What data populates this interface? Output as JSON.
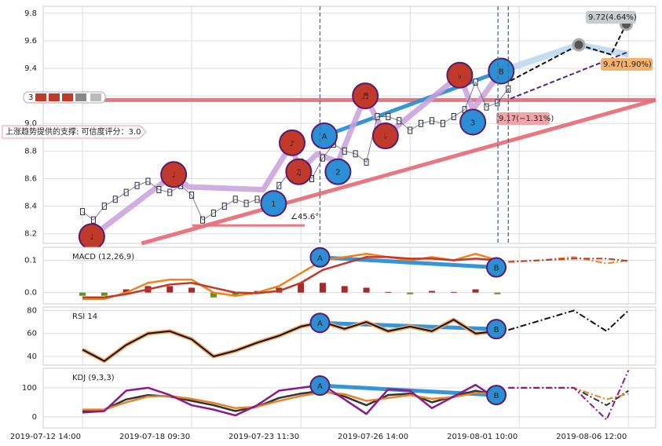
{
  "chart_data": [
    {
      "type": "line",
      "ylim": [
        8.13,
        9.85
      ],
      "yticks": [
        8.2,
        8.4,
        8.6,
        8.8,
        {
          "value": 9.0,
          "label": "9.0"
        },
        9.2,
        9.4,
        9.6,
        9.8
      ],
      "grid": true,
      "vlines": [
        43.5,
        76.1,
        78
      ],
      "series": [
        {
          "color": "#2b2d42",
          "x": [
            0,
            2,
            4,
            6,
            8,
            10,
            12,
            14,
            16,
            18,
            20,
            22,
            24,
            26,
            28,
            30,
            32,
            34,
            36,
            38,
            40,
            42,
            44,
            46,
            48,
            50,
            52,
            54,
            56,
            58,
            60,
            62,
            64,
            66,
            68,
            70,
            72,
            74,
            76,
            78
          ],
          "values": [
            8.36,
            8.3,
            8.4,
            8.45,
            8.5,
            8.55,
            8.58,
            8.52,
            8.5,
            8.55,
            8.48,
            8.3,
            8.35,
            8.4,
            8.45,
            8.42,
            8.45,
            8.42,
            8.55,
            8.65,
            8.72,
            8.6,
            8.75,
            8.85,
            8.8,
            8.78,
            8.72,
            9.05,
            9.05,
            9.02,
            8.95,
            9.0,
            9.02,
            9.0,
            9.05,
            9.1,
            9.3,
            9.12,
            9.15,
            9.25
          ]
        }
      ],
      "pattern": {
        "color": "#c9a0dc",
        "x": [
          1.7,
          16.7,
          19.4,
          33.1,
          38.4,
          39.6,
          43,
          46.8,
          51.8,
          55.5,
          69.1,
          71.5,
          76.7
        ],
        "values": [
          8.18,
          8.63,
          8.54,
          8.52,
          8.86,
          8.65,
          8.78,
          8.72,
          9.2,
          8.91,
          9.35,
          9.1,
          9.38
        ]
      },
      "trend_lines": [
        {
          "color": "#e8707a",
          "x": [
            10.8,
            105
          ],
          "values": [
            8.13,
            9.17
          ]
        },
        {
          "color": "#e8707a",
          "x": [
            -7,
            105
          ],
          "values": [
            9.17,
            9.17
          ]
        },
        {
          "color": "#2a8fd4",
          "x": [
            44.3,
            76.7
          ],
          "values": [
            8.91,
            9.38
          ]
        },
        {
          "color": "#e8707a",
          "x": [
            20.1,
            40.7
          ],
          "values": [
            8.26,
            8.26
          ]
        }
      ],
      "forecast": [
        {
          "color": "#b3d4ee",
          "x": [
            76.7,
            90.9,
            100
          ],
          "values": [
            9.38,
            9.57,
            9.5
          ]
        },
        {
          "color": "#111111",
          "x": [
            78.4,
            90.9,
            96.8,
            99.6
          ],
          "values": [
            9.31,
            9.57,
            9.5,
            9.72
          ]
        },
        {
          "color": "#4b2a8a",
          "x": [
            78.4,
            100
          ],
          "values": [
            9.18,
            9.52
          ]
        }
      ],
      "forecast_points": {
        "x": [
          90.9,
          99.6
        ],
        "values": [
          9.57,
          9.72
        ]
      },
      "markers": [
        {
          "label": "♩",
          "x": 1.7,
          "value": 8.18,
          "color": "#c0392b"
        },
        {
          "label": "♩",
          "x": 16.7,
          "value": 8.63,
          "color": "#c0392b"
        },
        {
          "label": "♪",
          "x": 38.4,
          "value": 8.86,
          "color": "#c0392b"
        },
        {
          "label": "♫",
          "x": 39.6,
          "value": 8.65,
          "color": "#c0392b"
        },
        {
          "label": "♬",
          "x": 51.8,
          "value": 9.2,
          "color": "#c0392b"
        },
        {
          "label": "♭",
          "x": 55.5,
          "value": 8.91,
          "color": "#c0392b"
        },
        {
          "label": "♭",
          "x": 69.1,
          "value": 9.35,
          "color": "#c0392b"
        },
        {
          "label": "1",
          "x": 35.0,
          "value": 8.42,
          "color": "#2a8fd4"
        },
        {
          "label": "2",
          "x": 46.8,
          "value": 8.65,
          "color": "#2a8fd4"
        },
        {
          "label": "3",
          "x": 71.5,
          "value": 9.01,
          "color": "#2a8fd4"
        },
        {
          "label": "A",
          "x": 44.3,
          "value": 8.91,
          "color": "#2a8fd4"
        },
        {
          "label": "B",
          "x": 76.7,
          "value": 9.38,
          "color": "#2a8fd4"
        }
      ],
      "callouts": [
        {
          "label": "9.72(4.64%)",
          "color": "#c8ccd0"
        },
        {
          "label": "9.47(1.90%)",
          "color": "#f5b26b"
        },
        {
          "label": "9.17(−1.31%)",
          "color": "#f2a5a8"
        }
      ],
      "support_text": "上涨趋势提供的支撑: 可信度评分：3.0",
      "angle_text": "∠45.6°",
      "badge_text": "3"
    },
    {
      "type": "macd",
      "title": "MACD (12,26,9)",
      "ylim": [
        -0.035,
        0.14
      ],
      "yticks": [
        {
          "value": 0,
          "label": "0.0"
        },
        0.1
      ],
      "grid": true,
      "x": [
        0,
        4,
        8,
        12,
        16,
        20,
        24,
        28,
        32,
        36,
        40,
        44,
        48,
        52,
        56,
        60,
        64,
        68,
        72,
        76
      ],
      "histogram": {
        "up_color": "#a52a2a",
        "down_color": "#6b8e23",
        "values": [
          -0.01,
          -0.01,
          0.01,
          0.02,
          0.02,
          0.015,
          -0.015,
          -0.01,
          0.005,
          0.015,
          0.03,
          0.03,
          0.02,
          0.015,
          0.002,
          -0.005,
          0.005,
          0.002,
          0.01,
          -0.005
        ]
      },
      "series": [
        {
          "color": "#f0821e",
          "values": [
            -0.02,
            -0.02,
            0.0,
            0.03,
            0.04,
            0.04,
            0.0,
            -0.01,
            0.0,
            0.02,
            0.06,
            0.1,
            0.11,
            0.12,
            0.11,
            0.1,
            0.11,
            0.1,
            0.12,
            0.1
          ]
        },
        {
          "color": "#c0392b",
          "values": [
            -0.015,
            -0.015,
            -0.005,
            0.01,
            0.025,
            0.03,
            0.015,
            0.0,
            -0.002,
            0.005,
            0.03,
            0.07,
            0.09,
            0.11,
            0.11,
            0.105,
            0.105,
            0.1,
            0.105,
            0.1
          ]
        }
      ],
      "forecast": [
        {
          "color": "#f0821e",
          "x": [
            78,
            84,
            90,
            96,
            100
          ],
          "values": [
            0.095,
            0.1,
            0.11,
            0.09,
            0.1
          ]
        },
        {
          "color": "#c0392b",
          "x": [
            78,
            84,
            90,
            96,
            100
          ],
          "values": [
            0.095,
            0.1,
            0.105,
            0.105,
            0.098
          ]
        }
      ],
      "trend_lines": [
        {
          "color": "#2a8fd4",
          "x": [
            43.5,
            75.8
          ],
          "values": [
            0.109,
            0.078
          ]
        }
      ],
      "markers": [
        {
          "label": "A",
          "x": 43.5,
          "value": 0.109,
          "color": "#2a8fd4"
        },
        {
          "label": "B",
          "x": 75.8,
          "value": 0.078,
          "color": "#2a8fd4"
        }
      ]
    },
    {
      "type": "line",
      "title": "RSI 14",
      "ylim": [
        32.5,
        83
      ],
      "yticks": [
        40,
        60,
        80
      ],
      "grid": true,
      "x": [
        0,
        4,
        8,
        12,
        16,
        20,
        24,
        28,
        32,
        36,
        40,
        44,
        48,
        52,
        56,
        60,
        64,
        68,
        72,
        76
      ],
      "series": [
        {
          "color": "#111111",
          "glow": "#f4a460",
          "values": [
            46,
            36,
            50,
            60,
            62,
            55,
            40,
            45,
            52,
            58,
            66,
            70,
            64,
            70,
            62,
            66,
            62,
            72,
            60,
            62
          ]
        }
      ],
      "forecast": [
        {
          "color": "#111111",
          "x": [
            78,
            90,
            96,
            100
          ],
          "values": [
            63,
            80,
            62,
            80
          ]
        }
      ],
      "trend_lines": [
        {
          "color": "#2a8fd4",
          "x": [
            43.5,
            75.8
          ],
          "values": [
            69.2,
            63.8
          ]
        }
      ],
      "markers": [
        {
          "label": "A",
          "x": 43.5,
          "value": 69.2,
          "color": "#2a8fd4"
        },
        {
          "label": "B",
          "x": 75.8,
          "value": 63.8,
          "color": "#2a8fd4"
        }
      ]
    },
    {
      "type": "line",
      "title": "KDJ (9,3,3)",
      "ylim": [
        -38,
        167
      ],
      "yticks": [
        0,
        100
      ],
      "grid": true,
      "x": [
        0,
        4,
        8,
        12,
        16,
        20,
        24,
        28,
        32,
        36,
        40,
        44,
        48,
        52,
        56,
        60,
        64,
        68,
        72,
        76
      ],
      "series": [
        {
          "color": "#333333",
          "values": [
            20,
            25,
            60,
            75,
            70,
            55,
            40,
            20,
            35,
            65,
            80,
            90,
            70,
            40,
            75,
            80,
            50,
            70,
            90,
            75
          ]
        },
        {
          "color": "#e8822a",
          "values": [
            25,
            25,
            50,
            70,
            72,
            62,
            48,
            30,
            35,
            55,
            72,
            85,
            78,
            55,
            65,
            75,
            62,
            68,
            82,
            80
          ]
        },
        {
          "color": "#8b1a8b",
          "values": [
            15,
            20,
            90,
            100,
            75,
            40,
            25,
            5,
            40,
            90,
            100,
            110,
            60,
            10,
            95,
            90,
            30,
            70,
            110,
            60
          ]
        }
      ],
      "forecast": [
        {
          "color": "#333333",
          "x": [
            78,
            90,
            96,
            100
          ],
          "values": [
            100,
            100,
            40,
            90
          ]
        },
        {
          "color": "#e8822a",
          "x": [
            78,
            90,
            96,
            100
          ],
          "values": [
            100,
            100,
            60,
            80
          ]
        },
        {
          "color": "#8b1a8b",
          "x": [
            78,
            90,
            96,
            100
          ],
          "values": [
            100,
            100,
            -10,
            160
          ]
        }
      ],
      "trend_lines": [
        {
          "color": "#2a8fd4",
          "x": [
            43.5,
            75.8
          ],
          "values": [
            107.5,
            75
          ]
        }
      ],
      "markers": [
        {
          "label": "A",
          "x": 43.5,
          "value": 107.5,
          "color": "#2a8fd4"
        },
        {
          "label": "B",
          "x": 75.8,
          "value": 75,
          "color": "#2a8fd4"
        }
      ],
      "xlim": [
        -7.2,
        105
      ],
      "xticks": [
        {
          "value": 0,
          "label": "2019-07-12 14:00"
        },
        {
          "value": 20,
          "label": "2019-07-18 09:30"
        },
        {
          "value": 40,
          "label": "2019-07-23 11:30"
        },
        {
          "value": 60,
          "label": "2019-07-26 14:00"
        },
        {
          "value": 80,
          "label": "2019-08-01 10:00"
        },
        {
          "value": 100,
          "label": "2019-08-06 12:00"
        }
      ]
    }
  ]
}
